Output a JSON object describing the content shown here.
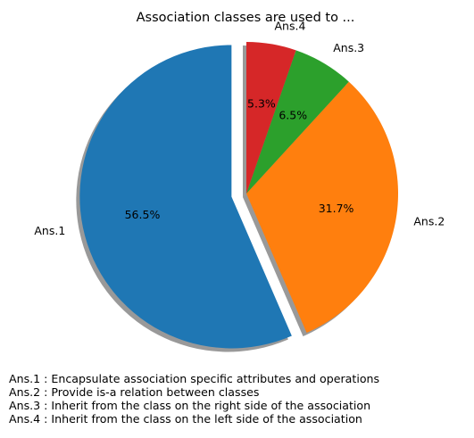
{
  "chart_data": {
    "type": "pie",
    "title": "Association classes are used to ...",
    "labels": [
      "Ans.1",
      "Ans.2",
      "Ans.3",
      "Ans.4"
    ],
    "values": [
      56.5,
      31.7,
      6.5,
      5.3
    ],
    "percent_labels": [
      "56.5%",
      "31.7%",
      "6.5%",
      "5.3%"
    ],
    "colors": [
      "#1f77b4",
      "#ff7f0e",
      "#2ca02c",
      "#d62728"
    ],
    "explode": [
      0.1,
      0,
      0,
      0
    ],
    "start_angle_deg": 90,
    "shadow": true,
    "notes": [
      "Ans.1 : Encapsulate association specific attributes and operations",
      "Ans.2 : Provide is-a relation between classes",
      "Ans.3 : Inherit from the class on the right side of the association",
      "Ans.4 : Inherit from the class on the left side of the association"
    ]
  }
}
